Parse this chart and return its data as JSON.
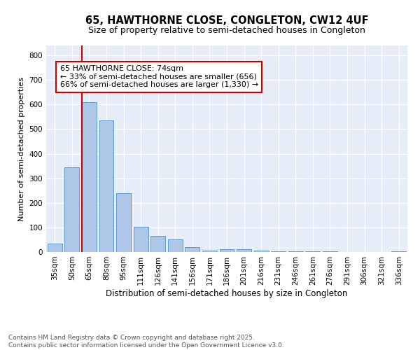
{
  "title1": "65, HAWTHORNE CLOSE, CONGLETON, CW12 4UF",
  "title2": "Size of property relative to semi-detached houses in Congleton",
  "xlabel": "Distribution of semi-detached houses by size in Congleton",
  "ylabel": "Number of semi-detached properties",
  "categories": [
    "35sqm",
    "50sqm",
    "65sqm",
    "80sqm",
    "95sqm",
    "111sqm",
    "126sqm",
    "141sqm",
    "156sqm",
    "171sqm",
    "186sqm",
    "201sqm",
    "216sqm",
    "231sqm",
    "246sqm",
    "261sqm",
    "276sqm",
    "291sqm",
    "306sqm",
    "321sqm",
    "336sqm"
  ],
  "values": [
    35,
    345,
    610,
    535,
    240,
    103,
    65,
    50,
    20,
    5,
    10,
    10,
    7,
    3,
    3,
    2,
    2,
    1,
    0,
    0,
    3
  ],
  "bar_color": "#aec6e8",
  "bar_edge_color": "#5b9bd5",
  "vline_color": "#cc0000",
  "annotation_text": "65 HAWTHORNE CLOSE: 74sqm\n← 33% of semi-detached houses are smaller (656)\n66% of semi-detached houses are larger (1,330) →",
  "annotation_box_color": "#ffffff",
  "annotation_box_edge": "#cc0000",
  "ylim": [
    0,
    840
  ],
  "yticks": [
    0,
    100,
    200,
    300,
    400,
    500,
    600,
    700,
    800
  ],
  "background_color": "#e8eef8",
  "grid_color": "#ffffff",
  "footer_text": "Contains HM Land Registry data © Crown copyright and database right 2025.\nContains public sector information licensed under the Open Government Licence v3.0.",
  "title1_fontsize": 10.5,
  "title2_fontsize": 9,
  "xlabel_fontsize": 8.5,
  "ylabel_fontsize": 8,
  "tick_fontsize": 7.5,
  "annotation_fontsize": 8,
  "footer_fontsize": 6.5
}
